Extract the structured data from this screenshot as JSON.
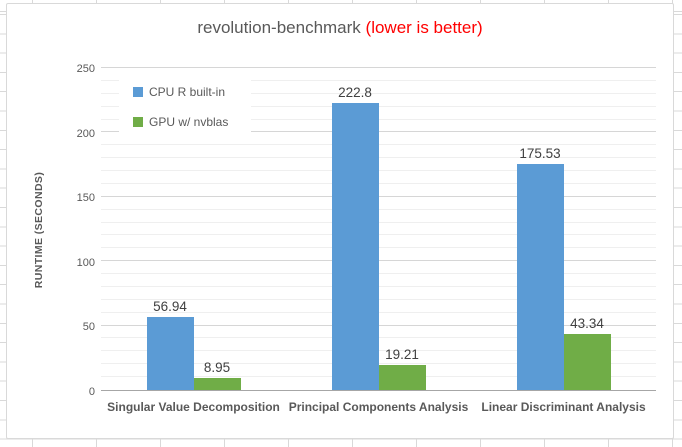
{
  "chart_data": {
    "type": "bar",
    "title": "revolution-benchmark",
    "title_suffix": "(lower is better)",
    "title_color": "#595959",
    "title_suffix_color": "#ff0000",
    "categories": [
      "Singular Value Decomposition",
      "Principal Components Analysis",
      "Linear Discriminant Analysis"
    ],
    "series": [
      {
        "name": "CPU R built-in",
        "color": "#5b9bd5",
        "values": [
          56.94,
          222.8,
          175.53
        ],
        "labels": [
          "56.94",
          "222.8",
          "175.53"
        ]
      },
      {
        "name": "GPU w/ nvblas",
        "color": "#70ad47",
        "values": [
          8.95,
          19.21,
          43.34
        ],
        "labels": [
          "8.95",
          "19.21",
          "43.34"
        ]
      }
    ],
    "xlabel": "",
    "ylabel": "RUNTIME (SECONDS)",
    "ylim": [
      0,
      250
    ],
    "yticks": [
      0,
      50,
      100,
      150,
      200,
      250
    ],
    "minor_step": 10,
    "major_step": 50,
    "grid": "major+minor horizontal",
    "legend_position": "inside top-left",
    "bar_label_color": "#404040",
    "axis_line_color": "#a6a6a6"
  }
}
